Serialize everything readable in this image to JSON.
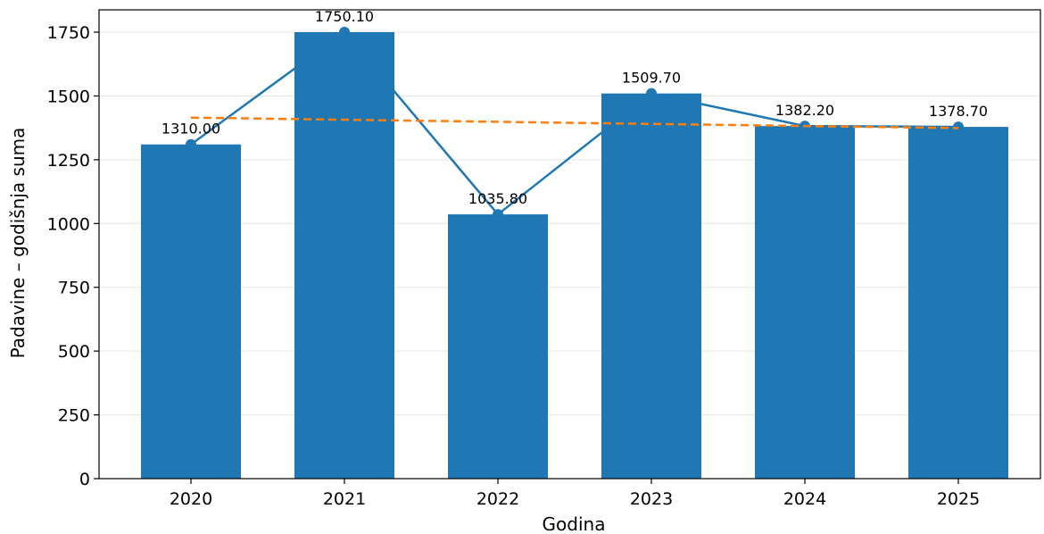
{
  "chart_data": {
    "type": "bar",
    "title": "",
    "xlabel": "Godina",
    "ylabel": "Padavine – godišnja suma",
    "categories": [
      "2020",
      "2021",
      "2022",
      "2023",
      "2024",
      "2025"
    ],
    "values": [
      1310.0,
      1750.1,
      1035.8,
      1509.7,
      1382.2,
      1378.7
    ],
    "data_labels": [
      "1310.00",
      "1750.10",
      "1035.80",
      "1509.70",
      "1382.20",
      "1378.70"
    ],
    "trend": {
      "start": 1415,
      "end": 1374
    },
    "yticks": [
      0,
      250,
      500,
      750,
      1000,
      1250,
      1500,
      1750
    ],
    "ylim": [
      0,
      1837.6
    ],
    "grid": "y",
    "legend": "none",
    "colors": {
      "bar": "#1f77b4",
      "line": "#1f77b4",
      "trend": "#ff7f0e",
      "grid": "#e6e6e6"
    }
  }
}
